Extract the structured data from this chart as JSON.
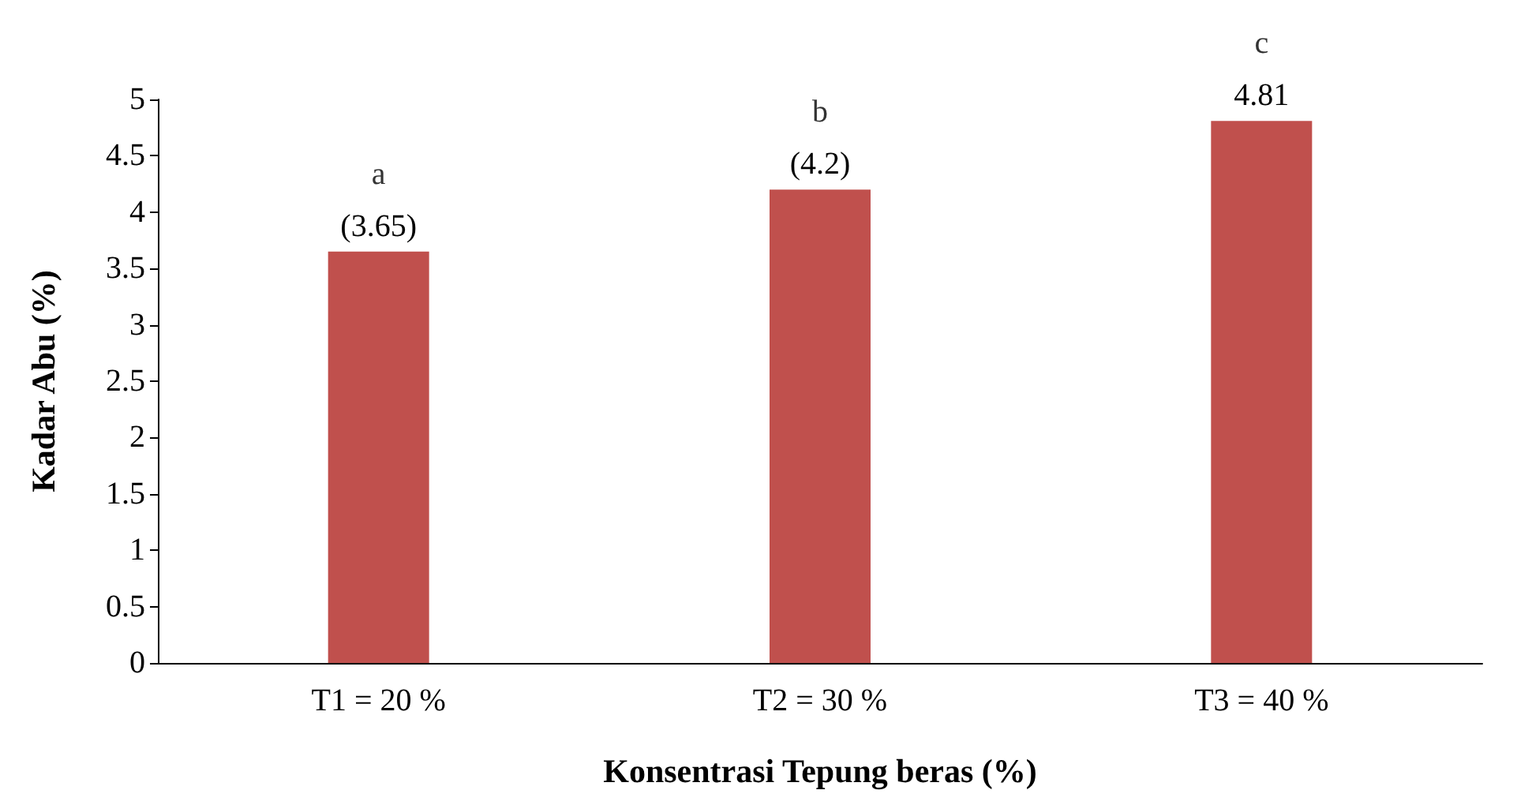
{
  "chart_data": {
    "type": "bar",
    "xlabel": "Konsentrasi Tepung beras (%)",
    "ylabel": "Kadar Abu (%)",
    "categories": [
      "T1 = 20 %",
      "T2 = 30 %",
      "T3 = 40 %"
    ],
    "values": [
      3.65,
      4.2,
      4.81
    ],
    "color": "#c0504d",
    "value_labels": [
      "(3.65)",
      "(4.2)",
      "4.81"
    ],
    "annotations": [
      {
        "text": "a",
        "x": "T1 = 20 %",
        "y": 3.65
      },
      {
        "text": "b",
        "x": "T2 = 30 %",
        "y": 4.2
      },
      {
        "text": "c",
        "x": "T3 = 40 %",
        "y": 4.81
      }
    ],
    "ylim": [
      0,
      5
    ],
    "yticks": [
      0,
      0.5,
      1,
      1.5,
      2,
      2.5,
      3,
      3.5,
      4,
      4.5,
      5
    ],
    "grid": false
  }
}
